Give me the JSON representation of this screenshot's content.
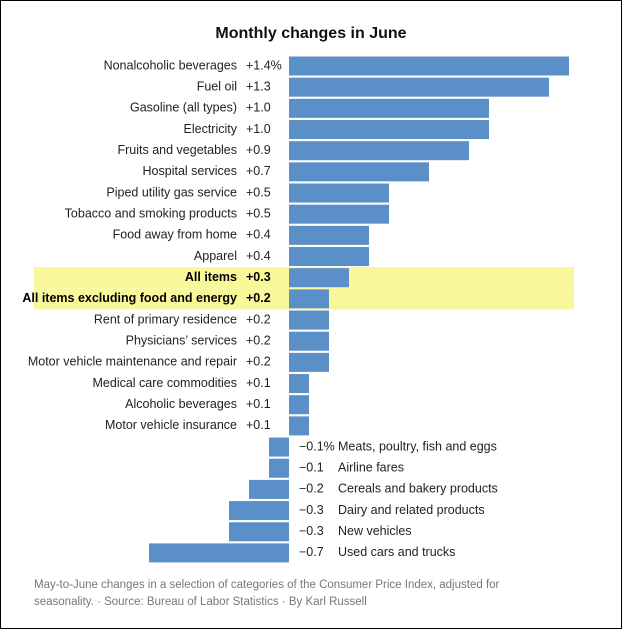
{
  "chart_data": {
    "type": "bar",
    "orientation": "horizontal",
    "title": "Monthly changes in June",
    "categories": [
      "Nonalcoholic beverages",
      "Fuel oil",
      "Gasoline (all types)",
      "Electricity",
      "Fruits and vegetables",
      "Hospital services",
      "Piped utility gas service",
      "Tobacco and smoking products",
      "Food away from home",
      "Apparel",
      "All items",
      "All items excluding food and energy",
      "Rent of primary residence",
      "Physicians’ services",
      "Motor vehicle maintenance and repair",
      "Medical care commodities",
      "Alcoholic beverages",
      "Motor vehicle insurance",
      "Meats, poultry, fish and eggs",
      "Airline fares",
      "Cereals and bakery products",
      "Dairy and related products",
      "New vehicles",
      "Used cars and trucks"
    ],
    "values": [
      1.4,
      1.3,
      1.0,
      1.0,
      0.9,
      0.7,
      0.5,
      0.5,
      0.4,
      0.4,
      0.3,
      0.2,
      0.2,
      0.2,
      0.2,
      0.1,
      0.1,
      0.1,
      -0.1,
      -0.1,
      -0.2,
      -0.3,
      -0.3,
      -0.7
    ],
    "value_labels": [
      "+1.4%",
      "+1.3",
      "+1.0",
      "+1.0",
      "+0.9",
      "+0.7",
      "+0.5",
      "+0.5",
      "+0.4",
      "+0.4",
      "+0.3",
      "+0.2",
      "+0.2",
      "+0.2",
      "+0.2",
      "+0.1",
      "+0.1",
      "+0.1",
      "−0.1%",
      "−0.1",
      "−0.2",
      "−0.3",
      "−0.3",
      "−0.7"
    ],
    "color": "#5b8fc7",
    "highlighted": [
      10,
      11
    ],
    "highlight_color": "#f8f89a",
    "xlim": [
      -0.7,
      1.4
    ],
    "note": "May-to-June changes in a selection of categories of the Consumer Price Index, adjusted for seasonality. · Source: Bureau of Labor Statistics · By Karl Russell"
  }
}
